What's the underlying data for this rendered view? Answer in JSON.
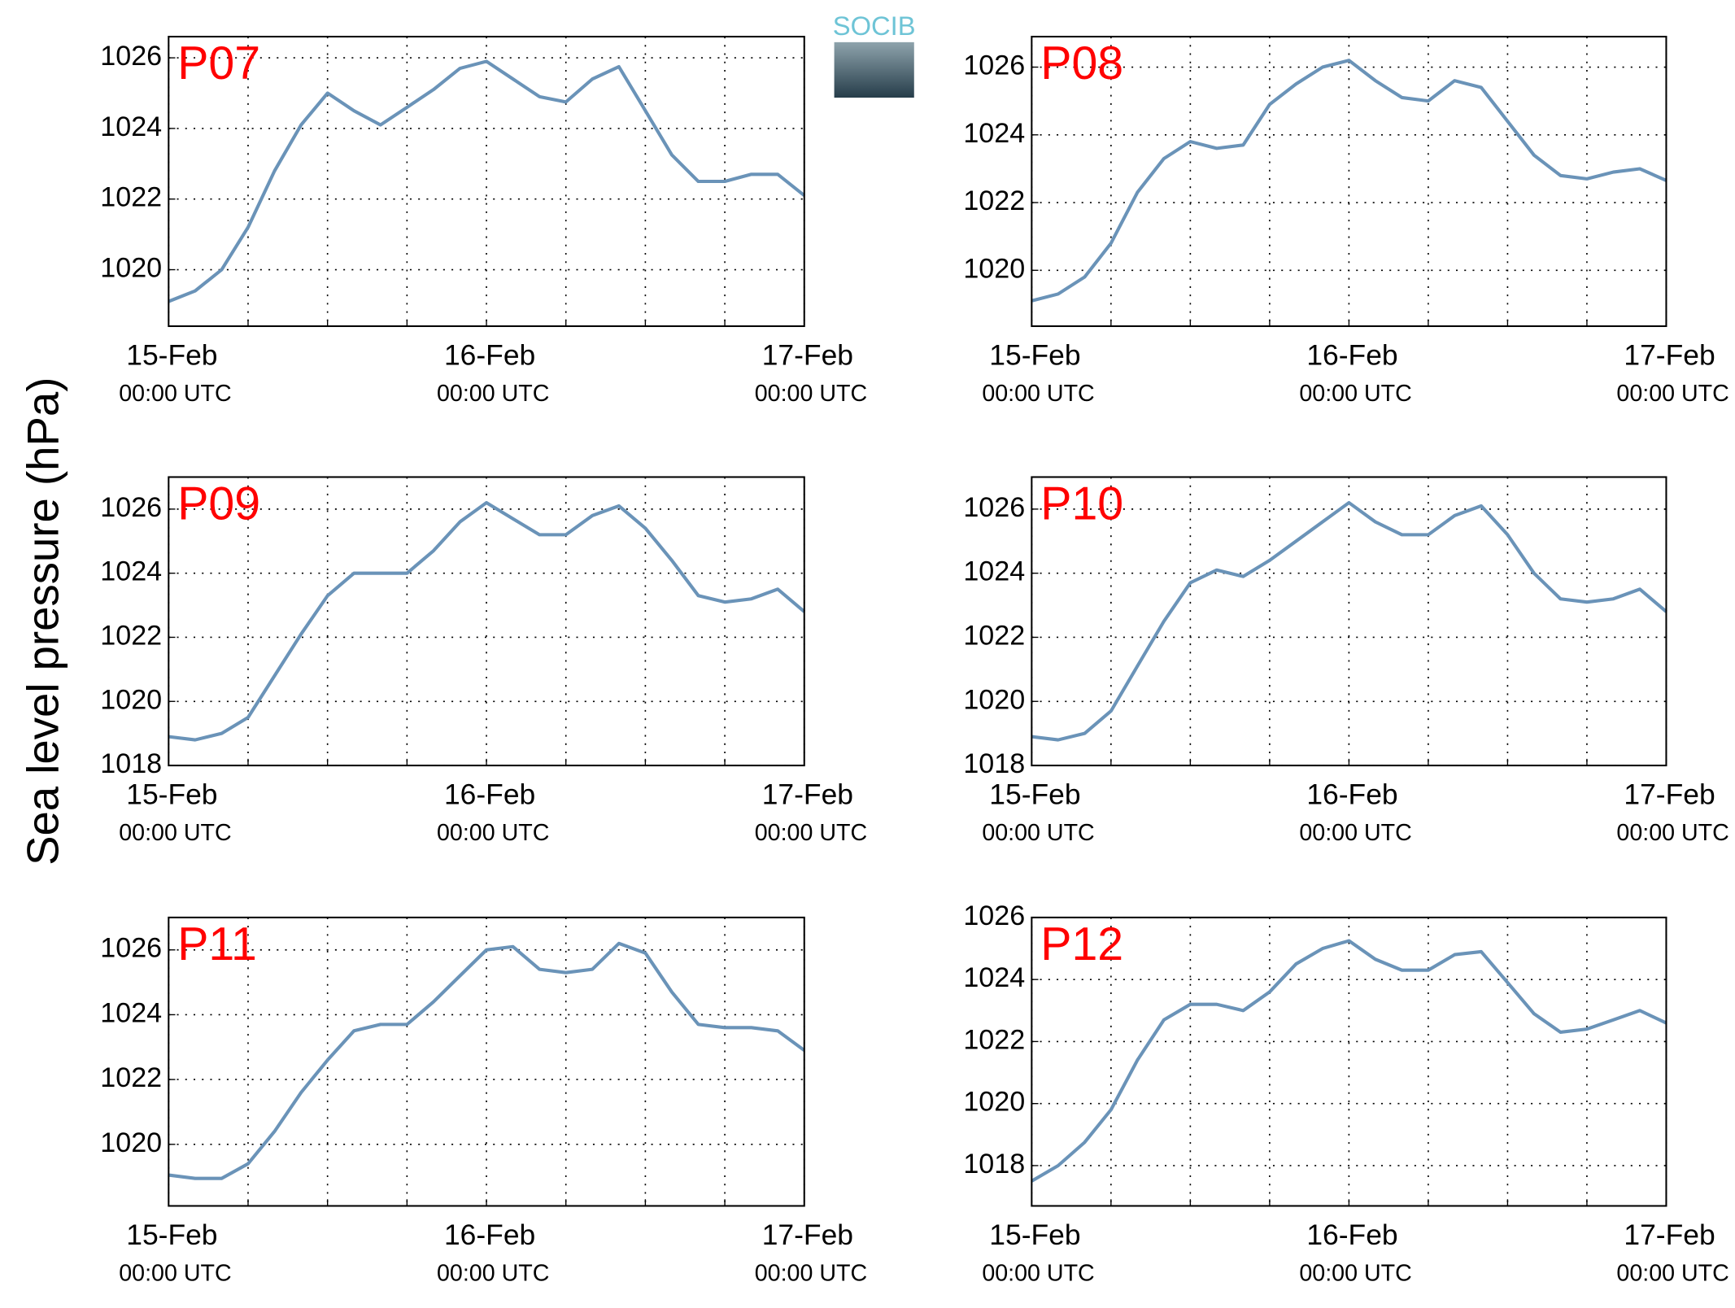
{
  "ylabel": "Sea level pressure (hPa)",
  "logo": "SOCIB",
  "chart_data": [
    {
      "type": "line",
      "title": "P07",
      "color": "#6a93b8",
      "x": [
        0,
        2,
        4,
        6,
        8,
        10,
        12,
        14,
        16,
        18,
        20,
        22,
        24,
        26,
        28,
        30,
        32,
        34,
        36,
        38,
        40,
        42,
        44,
        46,
        48
      ],
      "values": [
        1019.1,
        1019.4,
        1020.0,
        1021.2,
        1022.8,
        1024.1,
        1025.0,
        1024.5,
        1024.1,
        1024.6,
        1025.1,
        1025.7,
        1025.9,
        1025.4,
        1024.9,
        1024.75,
        1025.4,
        1025.75,
        1024.5,
        1023.25,
        1022.5,
        1022.5,
        1022.7,
        1022.7,
        1022.1
      ],
      "xlim": [
        0,
        48
      ],
      "ylim": [
        1018.4,
        1026.6
      ],
      "yticks": [
        1020,
        1022,
        1024,
        1026
      ],
      "xticks": [
        {
          "value": 0,
          "label": [
            "15-Feb",
            "00:00 UTC"
          ]
        },
        {
          "value": 24,
          "label": [
            "16-Feb",
            "00:00 UTC"
          ]
        },
        {
          "value": 48,
          "label": [
            "17-Feb",
            "00:00 UTC"
          ]
        }
      ],
      "xminorticks": [
        6,
        12,
        18,
        30,
        36,
        42
      ],
      "grid": true
    },
    {
      "type": "line",
      "title": "P08",
      "color": "#6a93b8",
      "x": [
        0,
        2,
        4,
        6,
        8,
        10,
        12,
        14,
        16,
        18,
        20,
        22,
        24,
        26,
        28,
        30,
        32,
        34,
        36,
        38,
        40,
        42,
        44,
        46,
        48
      ],
      "values": [
        1019.1,
        1019.3,
        1019.8,
        1020.8,
        1022.3,
        1023.3,
        1023.8,
        1023.6,
        1023.7,
        1024.9,
        1025.5,
        1026.0,
        1026.2,
        1025.6,
        1025.1,
        1025.0,
        1025.6,
        1025.4,
        1024.4,
        1023.4,
        1022.8,
        1022.7,
        1022.9,
        1023.0,
        1022.65
      ],
      "xlim": [
        0,
        48
      ],
      "ylim": [
        1018.35,
        1026.9
      ],
      "yticks": [
        1020,
        1022,
        1024,
        1026
      ],
      "xticks": [
        {
          "value": 0,
          "label": [
            "15-Feb",
            "00:00 UTC"
          ]
        },
        {
          "value": 24,
          "label": [
            "16-Feb",
            "00:00 UTC"
          ]
        },
        {
          "value": 48,
          "label": [
            "17-Feb",
            "00:00 UTC"
          ]
        }
      ],
      "xminorticks": [
        6,
        12,
        18,
        30,
        36,
        42
      ],
      "grid": true
    },
    {
      "type": "line",
      "title": "P09",
      "color": "#6a93b8",
      "x": [
        0,
        2,
        4,
        6,
        8,
        10,
        12,
        14,
        16,
        18,
        20,
        22,
        24,
        26,
        28,
        30,
        32,
        34,
        36,
        38,
        40,
        42,
        44,
        46,
        48
      ],
      "values": [
        1018.9,
        1018.8,
        1019.0,
        1019.5,
        1020.8,
        1022.1,
        1023.3,
        1024.0,
        1024.0,
        1024.0,
        1024.7,
        1025.6,
        1026.2,
        1025.7,
        1025.2,
        1025.2,
        1025.8,
        1026.1,
        1025.4,
        1024.4,
        1023.3,
        1023.1,
        1023.2,
        1023.5,
        1022.8
      ],
      "xlim": [
        0,
        48
      ],
      "ylim": [
        1018,
        1027
      ],
      "yticks": [
        1018,
        1020,
        1022,
        1024,
        1026
      ],
      "xticks": [
        {
          "value": 0,
          "label": [
            "15-Feb",
            "00:00 UTC"
          ]
        },
        {
          "value": 24,
          "label": [
            "16-Feb",
            "00:00 UTC"
          ]
        },
        {
          "value": 48,
          "label": [
            "17-Feb",
            "00:00 UTC"
          ]
        }
      ],
      "xminorticks": [
        6,
        12,
        18,
        30,
        36,
        42
      ],
      "grid": true
    },
    {
      "type": "line",
      "title": "P10",
      "color": "#6a93b8",
      "x": [
        0,
        2,
        4,
        6,
        8,
        10,
        12,
        14,
        16,
        18,
        20,
        22,
        24,
        26,
        28,
        30,
        32,
        34,
        36,
        38,
        40,
        42,
        44,
        46,
        48
      ],
      "values": [
        1018.9,
        1018.8,
        1019.0,
        1019.7,
        1021.1,
        1022.5,
        1023.7,
        1024.1,
        1023.9,
        1024.4,
        1025.0,
        1025.6,
        1026.2,
        1025.6,
        1025.2,
        1025.2,
        1025.8,
        1026.1,
        1025.2,
        1024.0,
        1023.2,
        1023.1,
        1023.2,
        1023.5,
        1022.8
      ],
      "xlim": [
        0,
        48
      ],
      "ylim": [
        1018,
        1027
      ],
      "yticks": [
        1018,
        1020,
        1022,
        1024,
        1026
      ],
      "xticks": [
        {
          "value": 0,
          "label": [
            "15-Feb",
            "00:00 UTC"
          ]
        },
        {
          "value": 24,
          "label": [
            "16-Feb",
            "00:00 UTC"
          ]
        },
        {
          "value": 48,
          "label": [
            "17-Feb",
            "00:00 UTC"
          ]
        }
      ],
      "xminorticks": [
        6,
        12,
        18,
        30,
        36,
        42
      ],
      "grid": true
    },
    {
      "type": "line",
      "title": "P11",
      "color": "#6a93b8",
      "x": [
        0,
        2,
        4,
        6,
        8,
        10,
        12,
        14,
        16,
        18,
        20,
        22,
        24,
        26,
        28,
        30,
        32,
        34,
        36,
        38,
        40,
        42,
        44,
        46,
        48
      ],
      "values": [
        1019.05,
        1018.95,
        1018.95,
        1019.4,
        1020.4,
        1021.6,
        1022.6,
        1023.5,
        1023.7,
        1023.7,
        1024.4,
        1025.2,
        1026.0,
        1026.1,
        1025.4,
        1025.3,
        1025.4,
        1026.2,
        1025.9,
        1024.7,
        1023.7,
        1023.6,
        1023.6,
        1023.5,
        1022.9
      ],
      "xlim": [
        0,
        48
      ],
      "ylim": [
        1018.1,
        1027
      ],
      "yticks": [
        1020,
        1022,
        1024,
        1026
      ],
      "xticks": [
        {
          "value": 0,
          "label": [
            "15-Feb",
            "00:00 UTC"
          ]
        },
        {
          "value": 24,
          "label": [
            "16-Feb",
            "00:00 UTC"
          ]
        },
        {
          "value": 48,
          "label": [
            "17-Feb",
            "00:00 UTC"
          ]
        }
      ],
      "xminorticks": [
        6,
        12,
        18,
        30,
        36,
        42
      ],
      "grid": true
    },
    {
      "type": "line",
      "title": "P12",
      "color": "#6a93b8",
      "x": [
        0,
        2,
        4,
        6,
        8,
        10,
        12,
        14,
        16,
        18,
        20,
        22,
        24,
        26,
        28,
        30,
        32,
        34,
        36,
        38,
        40,
        42,
        44,
        46,
        48
      ],
      "values": [
        1017.5,
        1018.0,
        1018.75,
        1019.8,
        1021.4,
        1022.7,
        1023.2,
        1023.2,
        1023.0,
        1023.6,
        1024.5,
        1025.0,
        1025.25,
        1024.65,
        1024.3,
        1024.3,
        1024.8,
        1024.9,
        1023.9,
        1022.9,
        1022.3,
        1022.4,
        1022.7,
        1023.0,
        1022.6
      ],
      "xlim": [
        0,
        48
      ],
      "ylim": [
        1016.7,
        1026
      ],
      "yticks": [
        1018,
        1020,
        1022,
        1024,
        1026
      ],
      "xticks": [
        {
          "value": 0,
          "label": [
            "15-Feb",
            "00:00 UTC"
          ]
        },
        {
          "value": 24,
          "label": [
            "16-Feb",
            "00:00 UTC"
          ]
        },
        {
          "value": 48,
          "label": [
            "17-Feb",
            "00:00 UTC"
          ]
        }
      ],
      "xminorticks": [
        6,
        12,
        18,
        30,
        36,
        42
      ],
      "grid": true
    }
  ]
}
